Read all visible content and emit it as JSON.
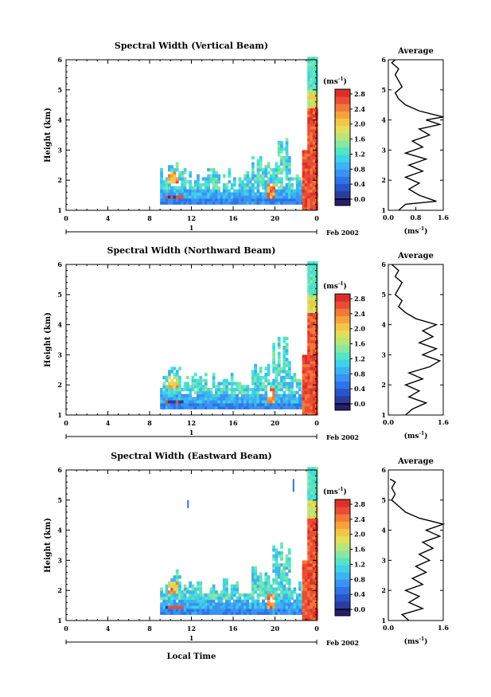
{
  "colorbar_ticks": [
    "0.0",
    "0.4",
    "0.8",
    "1.2",
    "1.6",
    "2.0",
    "2.4",
    "2.8"
  ],
  "colorbar_colors": [
    "#2a1d6e",
    "#2b3c9e",
    "#2a55c8",
    "#2f73e6",
    "#3a92f2",
    "#3fb2f0",
    "#3fd2e8",
    "#54e4c6",
    "#8ae6a0",
    "#b8e67a",
    "#e0e05a",
    "#f3c64a",
    "#f5a23d",
    "#f2793a",
    "#ea4d36",
    "#dd2f2a"
  ],
  "chart_data": [
    {
      "type": "heatmap",
      "title": "Spectral Width (Vertical Beam)",
      "ylabel": "Height (km)",
      "yticks": [
        "1",
        "2",
        "3",
        "4",
        "5",
        "6"
      ],
      "xticks": [
        "0",
        "4",
        "8",
        "12",
        "16",
        "20",
        "0"
      ],
      "date_marker": "1",
      "date_label": "Feb 2002",
      "colorbar_unit": "(ms",
      "colorbar_unit_exp": "-1",
      "colorbar_unit_close": ")",
      "ylim": [
        1,
        6
      ],
      "xlim": [
        0,
        24
      ],
      "avg_title": "Average",
      "avg_xticks": [
        "0.0",
        "0.8",
        "1.6"
      ],
      "avg_xlabel": "(ms",
      "avg_xlabel_exp": "-1",
      "avg_xlabel_close": ")",
      "avg_profile": [
        [
          0.3,
          1.0
        ],
        [
          0.5,
          1.2
        ],
        [
          1.4,
          1.3
        ],
        [
          0.9,
          1.5
        ],
        [
          0.6,
          1.7
        ],
        [
          0.9,
          1.9
        ],
        [
          0.5,
          2.1
        ],
        [
          1.0,
          2.3
        ],
        [
          0.6,
          2.5
        ],
        [
          1.1,
          2.7
        ],
        [
          0.5,
          2.9
        ],
        [
          1.0,
          3.1
        ],
        [
          0.7,
          3.3
        ],
        [
          1.2,
          3.5
        ],
        [
          0.9,
          3.7
        ],
        [
          1.5,
          3.85
        ],
        [
          1.1,
          4.0
        ],
        [
          1.6,
          4.1
        ],
        [
          0.9,
          4.3
        ],
        [
          0.5,
          4.5
        ],
        [
          0.3,
          4.7
        ],
        [
          0.2,
          4.9
        ],
        [
          0.4,
          5.1
        ],
        [
          0.3,
          5.3
        ],
        [
          0.2,
          5.5
        ],
        [
          0.3,
          5.7
        ],
        [
          0.1,
          5.9
        ],
        [
          0.2,
          6.0
        ]
      ]
    },
    {
      "type": "heatmap",
      "title": "Spectral Width (Northward Beam)",
      "ylabel": "Height (km)",
      "yticks": [
        "1",
        "2",
        "3",
        "4",
        "5",
        "6"
      ],
      "xticks": [
        "0",
        "4",
        "8",
        "12",
        "16",
        "20",
        "0"
      ],
      "date_marker": "1",
      "date_label": "Feb 2002",
      "colorbar_unit": "(ms",
      "colorbar_unit_exp": "-1",
      "colorbar_unit_close": ")",
      "ylim": [
        1,
        6
      ],
      "xlim": [
        0,
        24
      ],
      "avg_title": "Average",
      "avg_xticks": [
        "0.0",
        "1.6"
      ],
      "avg_xlabel": "(ms",
      "avg_xlabel_exp": "-1",
      "avg_xlabel_close": ")",
      "avg_profile": [
        [
          0.5,
          1.0
        ],
        [
          0.7,
          1.2
        ],
        [
          1.1,
          1.4
        ],
        [
          0.6,
          1.6
        ],
        [
          0.9,
          1.8
        ],
        [
          0.5,
          2.0
        ],
        [
          1.0,
          2.2
        ],
        [
          0.6,
          2.4
        ],
        [
          1.2,
          2.6
        ],
        [
          1.5,
          2.8
        ],
        [
          1.0,
          3.0
        ],
        [
          1.4,
          3.2
        ],
        [
          0.9,
          3.4
        ],
        [
          1.3,
          3.6
        ],
        [
          1.0,
          3.8
        ],
        [
          1.4,
          4.0
        ],
        [
          0.8,
          4.2
        ],
        [
          0.5,
          4.4
        ],
        [
          0.3,
          4.6
        ],
        [
          0.4,
          4.8
        ],
        [
          0.2,
          5.0
        ],
        [
          0.3,
          5.2
        ],
        [
          0.4,
          5.4
        ],
        [
          0.2,
          5.6
        ],
        [
          0.3,
          5.8
        ],
        [
          0.1,
          6.0
        ]
      ]
    },
    {
      "type": "heatmap",
      "title": "Spectral Width (Eastward Beam)",
      "ylabel": "Height (km)",
      "yticks": [
        "1",
        "2",
        "3",
        "4",
        "5",
        "6"
      ],
      "xticks": [
        "0",
        "4",
        "8",
        "12",
        "16",
        "20",
        "0"
      ],
      "date_marker": "1",
      "date_label": "Feb 2002",
      "xlabel": "Local Time",
      "colorbar_unit": "(ms",
      "colorbar_unit_exp": "-1",
      "colorbar_unit_close": ")",
      "ylim": [
        1,
        6
      ],
      "xlim": [
        0,
        24
      ],
      "avg_title": "Average",
      "avg_xticks": [
        "0.0",
        "1.6"
      ],
      "avg_xlabel": "(ms",
      "avg_xlabel_exp": "-1",
      "avg_xlabel_close": ")",
      "avg_profile": [
        [
          0.6,
          1.0
        ],
        [
          0.4,
          1.2
        ],
        [
          1.0,
          1.4
        ],
        [
          0.6,
          1.6
        ],
        [
          0.9,
          1.8
        ],
        [
          0.5,
          2.0
        ],
        [
          1.0,
          2.2
        ],
        [
          0.7,
          2.4
        ],
        [
          1.1,
          2.6
        ],
        [
          0.8,
          2.8
        ],
        [
          1.2,
          3.0
        ],
        [
          0.9,
          3.2
        ],
        [
          1.3,
          3.4
        ],
        [
          1.0,
          3.6
        ],
        [
          1.5,
          3.8
        ],
        [
          1.1,
          4.0
        ],
        [
          1.6,
          4.2
        ],
        [
          0.9,
          4.4
        ],
        [
          0.5,
          4.6
        ],
        [
          0.3,
          4.8
        ],
        [
          0.1,
          5.0
        ],
        [
          0.2,
          5.2
        ],
        [
          0.1,
          5.4
        ],
        [
          0.2,
          5.6
        ],
        [
          0.05,
          5.7
        ]
      ]
    }
  ]
}
